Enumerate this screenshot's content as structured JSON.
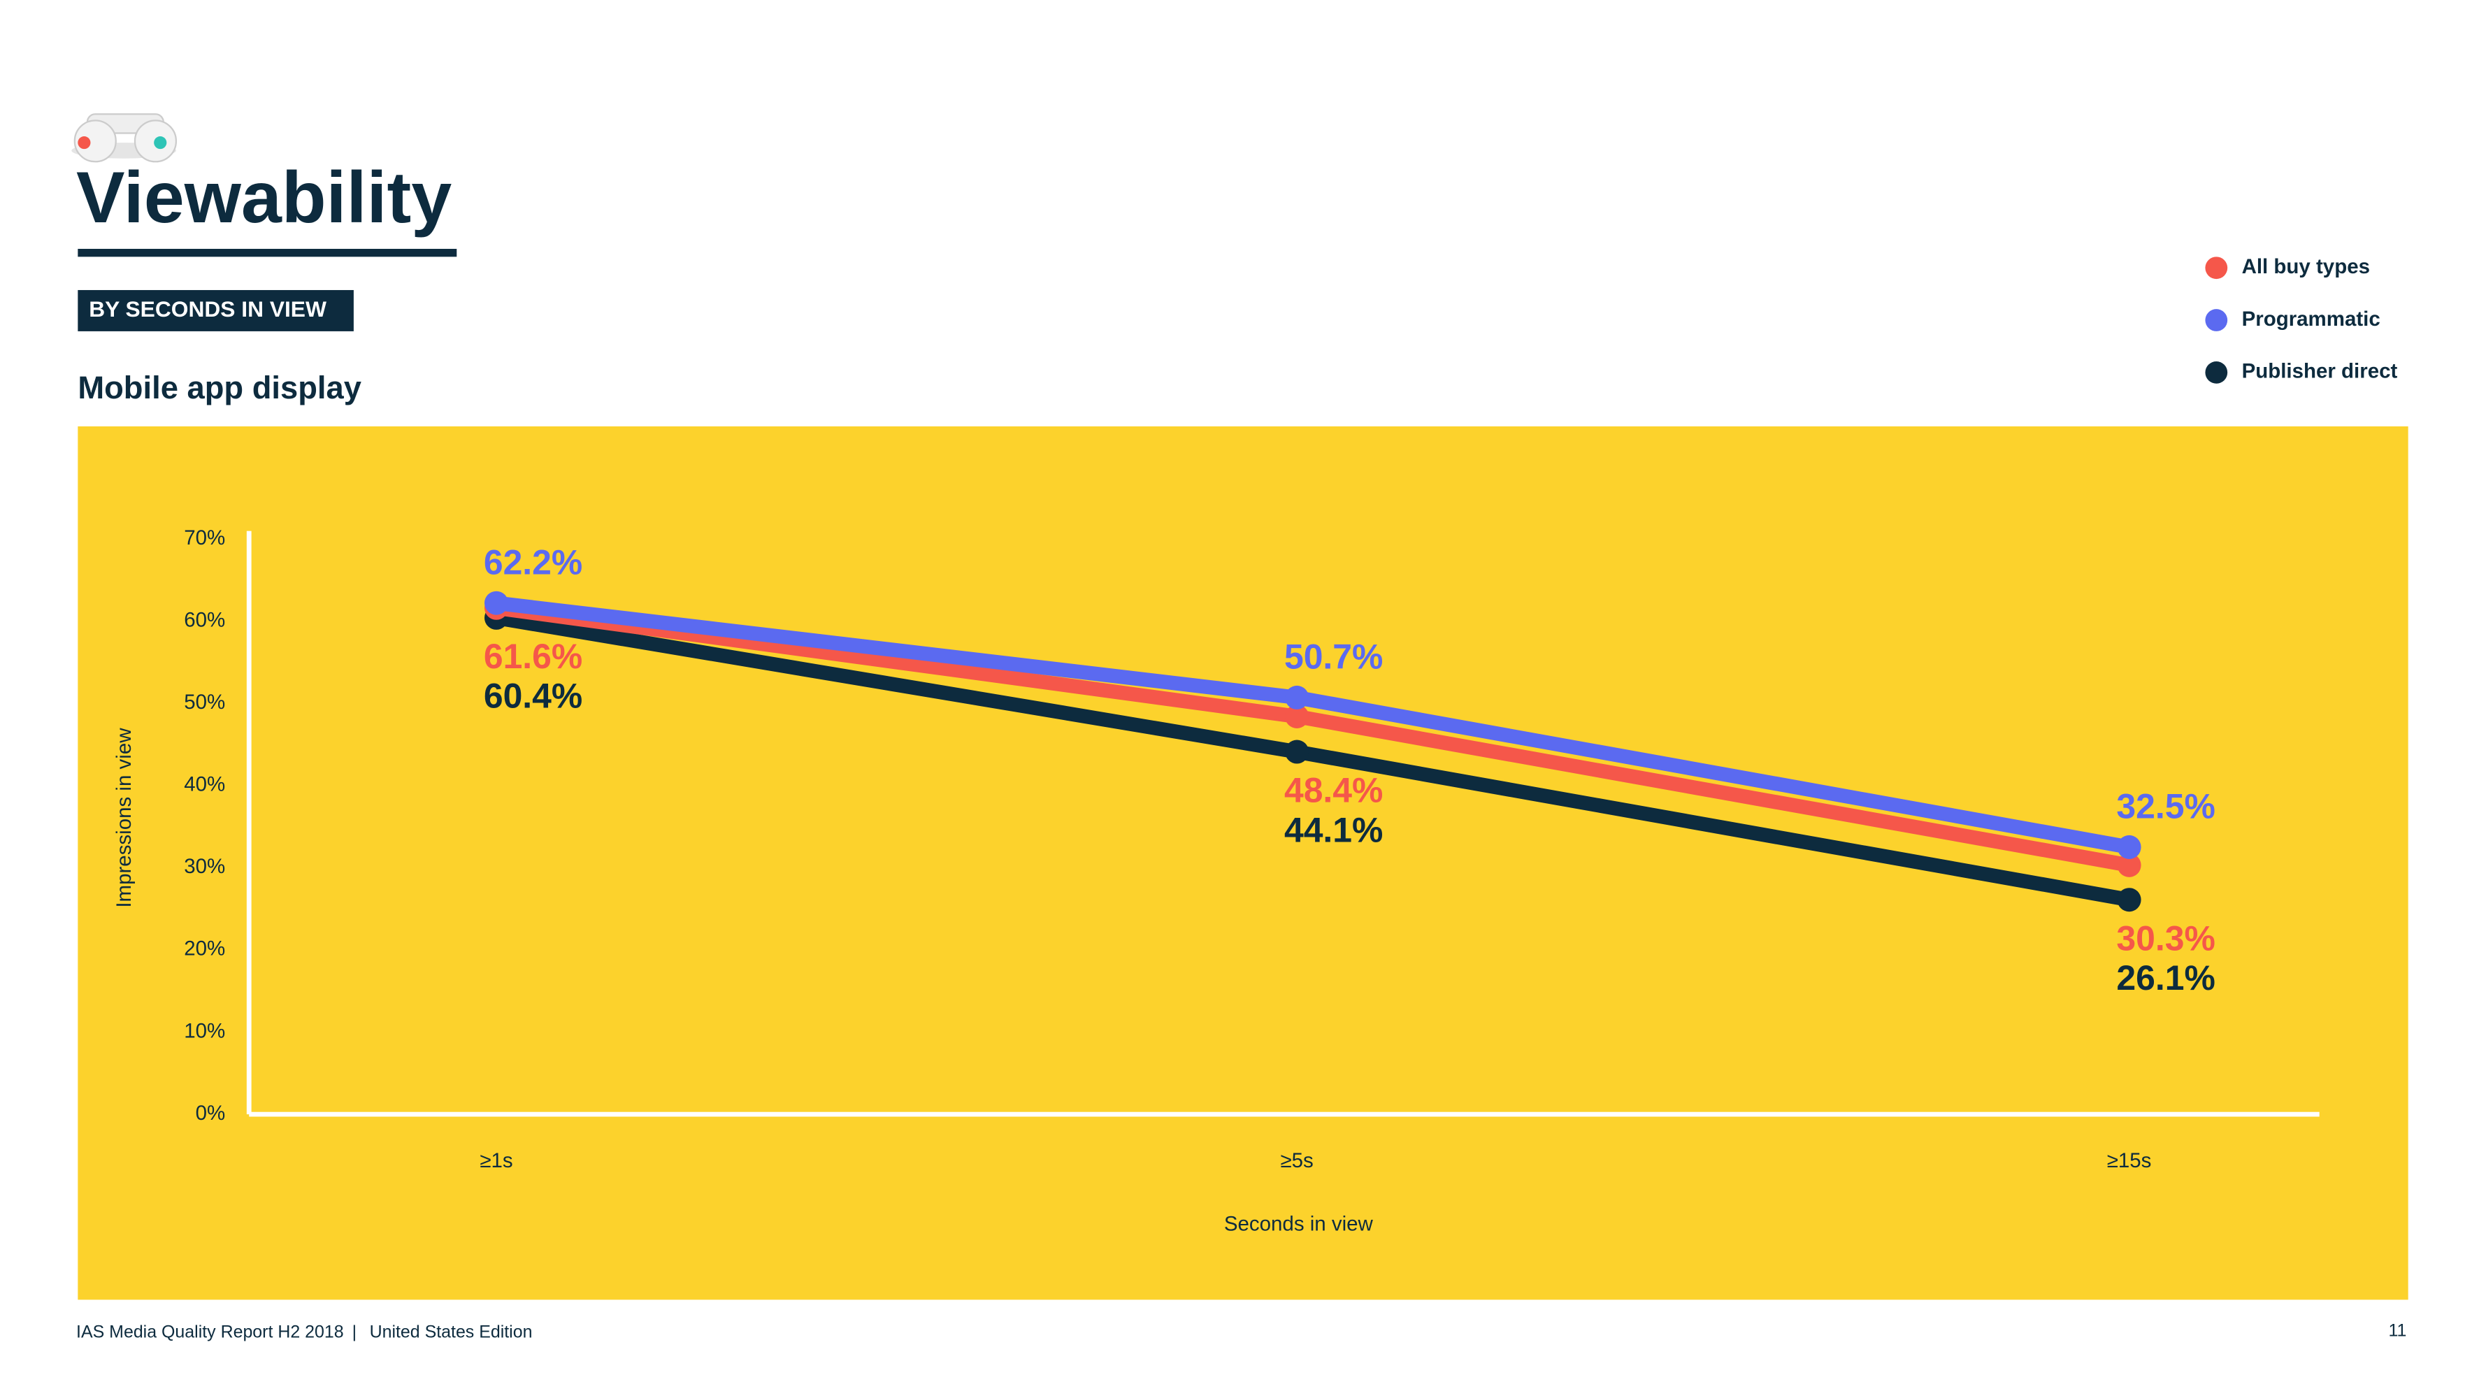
{
  "header": {
    "title": "Viewability",
    "tag": "BY SECONDS IN VIEW",
    "subtitle": "Mobile app display"
  },
  "chart_data": {
    "type": "line",
    "categories": [
      "≥1s",
      "≥5s",
      "≥15s"
    ],
    "series": [
      {
        "name": "All buy types",
        "color": "#f5574a",
        "values": [
          61.6,
          48.4,
          30.3
        ],
        "value_labels": [
          "61.6%",
          "48.4%",
          "30.3%"
        ]
      },
      {
        "name": "Programmatic",
        "color": "#5b6af0",
        "values": [
          62.2,
          50.7,
          32.5
        ],
        "value_labels": [
          "62.2%",
          "50.7%",
          "32.5%"
        ]
      },
      {
        "name": "Publisher direct",
        "color": "#0d2b3e",
        "values": [
          60.4,
          44.1,
          26.1
        ],
        "value_labels": [
          "60.4%",
          "44.1%",
          "26.1%"
        ]
      }
    ],
    "ylim": [
      0,
      70
    ],
    "yticks": [
      {
        "value": 0,
        "label": "0%"
      },
      {
        "value": 10,
        "label": "10%"
      },
      {
        "value": 20,
        "label": "20%"
      },
      {
        "value": 30,
        "label": "30%"
      },
      {
        "value": 40,
        "label": "40%"
      },
      {
        "value": 50,
        "label": "50%"
      },
      {
        "value": 60,
        "label": "60%"
      },
      {
        "value": 70,
        "label": "70%"
      }
    ],
    "x_label": "Seconds in view",
    "y_label": "Impressions in view",
    "legend": "top-right",
    "background": "#fcd22c"
  },
  "footer": {
    "report": "IAS Media Quality Report H2 2018",
    "separator": "|",
    "edition": "United States Edition",
    "page": "11"
  }
}
